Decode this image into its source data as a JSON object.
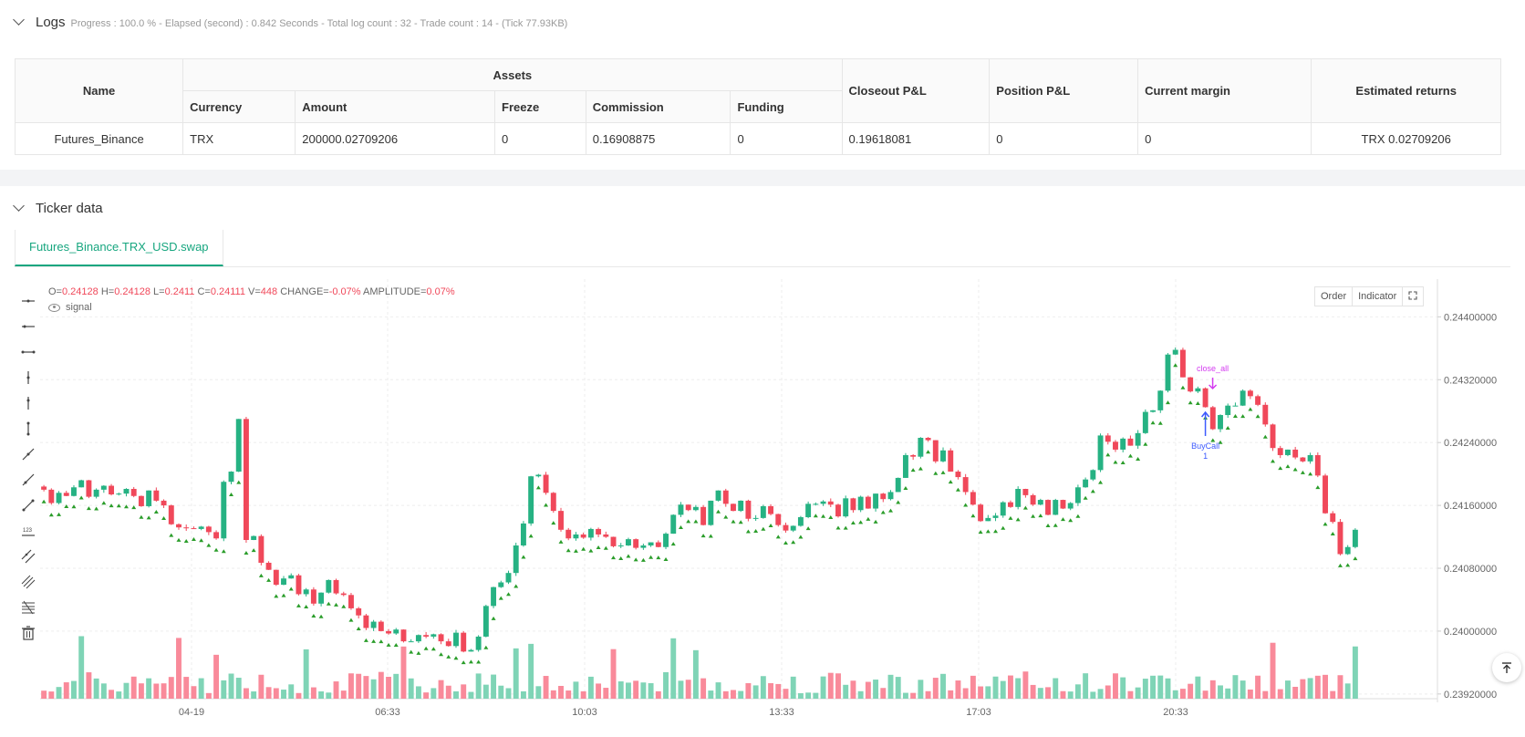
{
  "logs": {
    "title": "Logs",
    "summary": "Progress : 100.0 % - Elapsed (second) : 0.842  Seconds - Total log count : 32 - Trade count : 14 - (Tick 77.93KB)"
  },
  "assets_table": {
    "headers": {
      "name": "Name",
      "assets": "Assets",
      "currency": "Currency",
      "amount": "Amount",
      "freeze": "Freeze",
      "commission": "Commission",
      "funding": "Funding",
      "closeout": "Closeout P&L",
      "position": "Position P&L",
      "margin": "Current margin",
      "returns": "Estimated returns"
    },
    "row": {
      "name": "Futures_Binance",
      "currency": "TRX",
      "amount": "200000.02709206",
      "freeze": "0",
      "commission": "0.16908875",
      "funding": "0",
      "closeout": "0.19618081",
      "position": "0",
      "margin": "0",
      "returns": "TRX 0.02709206"
    }
  },
  "ticker": {
    "title": "Ticker data",
    "tab_label": "Futures_Binance.TRX_USD.swap"
  },
  "ohlc": {
    "o_label": "O=",
    "o": "0.24128",
    "h_label": "H=",
    "h": "0.24128",
    "l_label": "L=",
    "l": "0.2411",
    "c_label": "C=",
    "c": "0.24111",
    "v_label": "V=",
    "v": "448",
    "change_label": "CHANGE=",
    "change": "-0.07%",
    "amp_label": "AMPLITUDE=",
    "amp": "0.07%"
  },
  "signal_label": "signal",
  "chart_buttons": {
    "order": "Order",
    "indicator": "Indicator"
  },
  "colors": {
    "up": "#26b283",
    "down": "#f0485a",
    "signal": "#2a9d2a",
    "buy": "#3d5afe",
    "close": "#d43cf0",
    "accent": "#17a67f"
  },
  "chart_data": {
    "type": "candlestick",
    "x_ticks": [
      "04-19",
      "06:33",
      "10:03",
      "13:33",
      "17:03",
      "20:33"
    ],
    "y_ticks": [
      "0.24400000",
      "0.24320000",
      "0.24240000",
      "0.24160000",
      "0.24080000",
      "0.24000000",
      "0.23920000"
    ],
    "ylim": [
      0.23914,
      0.24448
    ],
    "close": [
      0.2418,
      0.24163,
      0.24176,
      0.24172,
      0.24183,
      0.24192,
      0.24171,
      0.2418,
      0.24185,
      0.24174,
      0.24175,
      0.24181,
      0.24172,
      0.24159,
      0.24179,
      0.24166,
      0.2416,
      0.24136,
      0.24132,
      0.24131,
      0.2413,
      0.24133,
      0.24126,
      0.24118,
      0.2419,
      0.24203,
      0.2427,
      0.24116,
      0.24121,
      0.24087,
      0.24078,
      0.24059,
      0.24067,
      0.24071,
      0.24047,
      0.24053,
      0.24035,
      0.24049,
      0.24065,
      0.24048,
      0.24046,
      0.24029,
      0.2402,
      0.24004,
      0.24012,
      0.24,
      0.23997,
      0.24002,
      0.23987,
      0.23987,
      0.23995,
      0.23993,
      0.23996,
      0.23987,
      0.23981,
      0.23998,
      0.23974,
      0.23976,
      0.23993,
      0.24032,
      0.24056,
      0.24062,
      0.24074,
      0.24109,
      0.24137,
      0.24197,
      0.24199,
      0.24176,
      0.24153,
      0.24129,
      0.24118,
      0.24123,
      0.24119,
      0.2413,
      0.24123,
      0.2412,
      0.24108,
      0.24109,
      0.24117,
      0.24106,
      0.24109,
      0.24113,
      0.24107,
      0.24124,
      0.24148,
      0.24161,
      0.24154,
      0.24158,
      0.24135,
      0.24166,
      0.24179,
      0.24162,
      0.24153,
      0.24166,
      0.24143,
      0.24144,
      0.24159,
      0.24149,
      0.24135,
      0.24128,
      0.24134,
      0.24145,
      0.24162,
      0.24162,
      0.24165,
      0.24161,
      0.24146,
      0.24169,
      0.24154,
      0.24171,
      0.24156,
      0.24175,
      0.24168,
      0.24177,
      0.24195,
      0.24224,
      0.24222,
      0.24246,
      0.24243,
      0.24216,
      0.2423,
      0.24203,
      0.24196,
      0.24177,
      0.24161,
      0.2414,
      0.24144,
      0.24147,
      0.24164,
      0.24158,
      0.24181,
      0.24173,
      0.24161,
      0.24167,
      0.24148,
      0.24167,
      0.24156,
      0.24163,
      0.24183,
      0.24193,
      0.24205,
      0.24249,
      0.24241,
      0.24231,
      0.24245,
      0.24236,
      0.24252,
      0.24279,
      0.24281,
      0.24306,
      0.24352,
      0.24358,
      0.24323,
      0.24305,
      0.24309,
      0.24285,
      0.24257,
      0.24275,
      0.24287,
      0.24287,
      0.24306,
      0.24299,
      0.24288,
      0.24263,
      0.24233,
      0.24224,
      0.24231,
      0.24221,
      0.24216,
      0.24224,
      0.24198,
      0.2415,
      0.24139,
      0.24098,
      0.24107,
      0.24129
    ]
  }
}
